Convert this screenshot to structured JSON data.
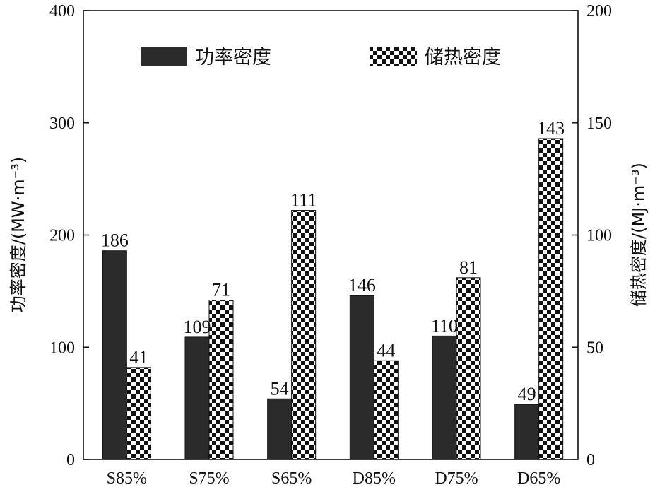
{
  "chart_data": {
    "type": "bar",
    "categories": [
      "S85%",
      "S75%",
      "S65%",
      "D85%",
      "D75%",
      "D65%"
    ],
    "series": [
      {
        "name": "功率密度",
        "axis": "left",
        "values": [
          186,
          109,
          54,
          146,
          110,
          49
        ],
        "color": "#2b2b2b",
        "pattern": "solid"
      },
      {
        "name": "储热密度",
        "axis": "right",
        "values": [
          41,
          71,
          111,
          44,
          81,
          143
        ],
        "color": "#111111",
        "pattern": "checkerboard"
      }
    ],
    "ylabel_left": "功率密度/(MW·m⁻³)",
    "ylabel_right": "储热密度/(MJ·m⁻³)",
    "ylim_left": [
      0,
      400
    ],
    "ylim_right": [
      0,
      200
    ],
    "yticks_left": [
      0,
      100,
      200,
      300,
      400
    ],
    "yticks_right": [
      0,
      50,
      100,
      150,
      200
    ],
    "legend_position": "top",
    "grid": false
  }
}
